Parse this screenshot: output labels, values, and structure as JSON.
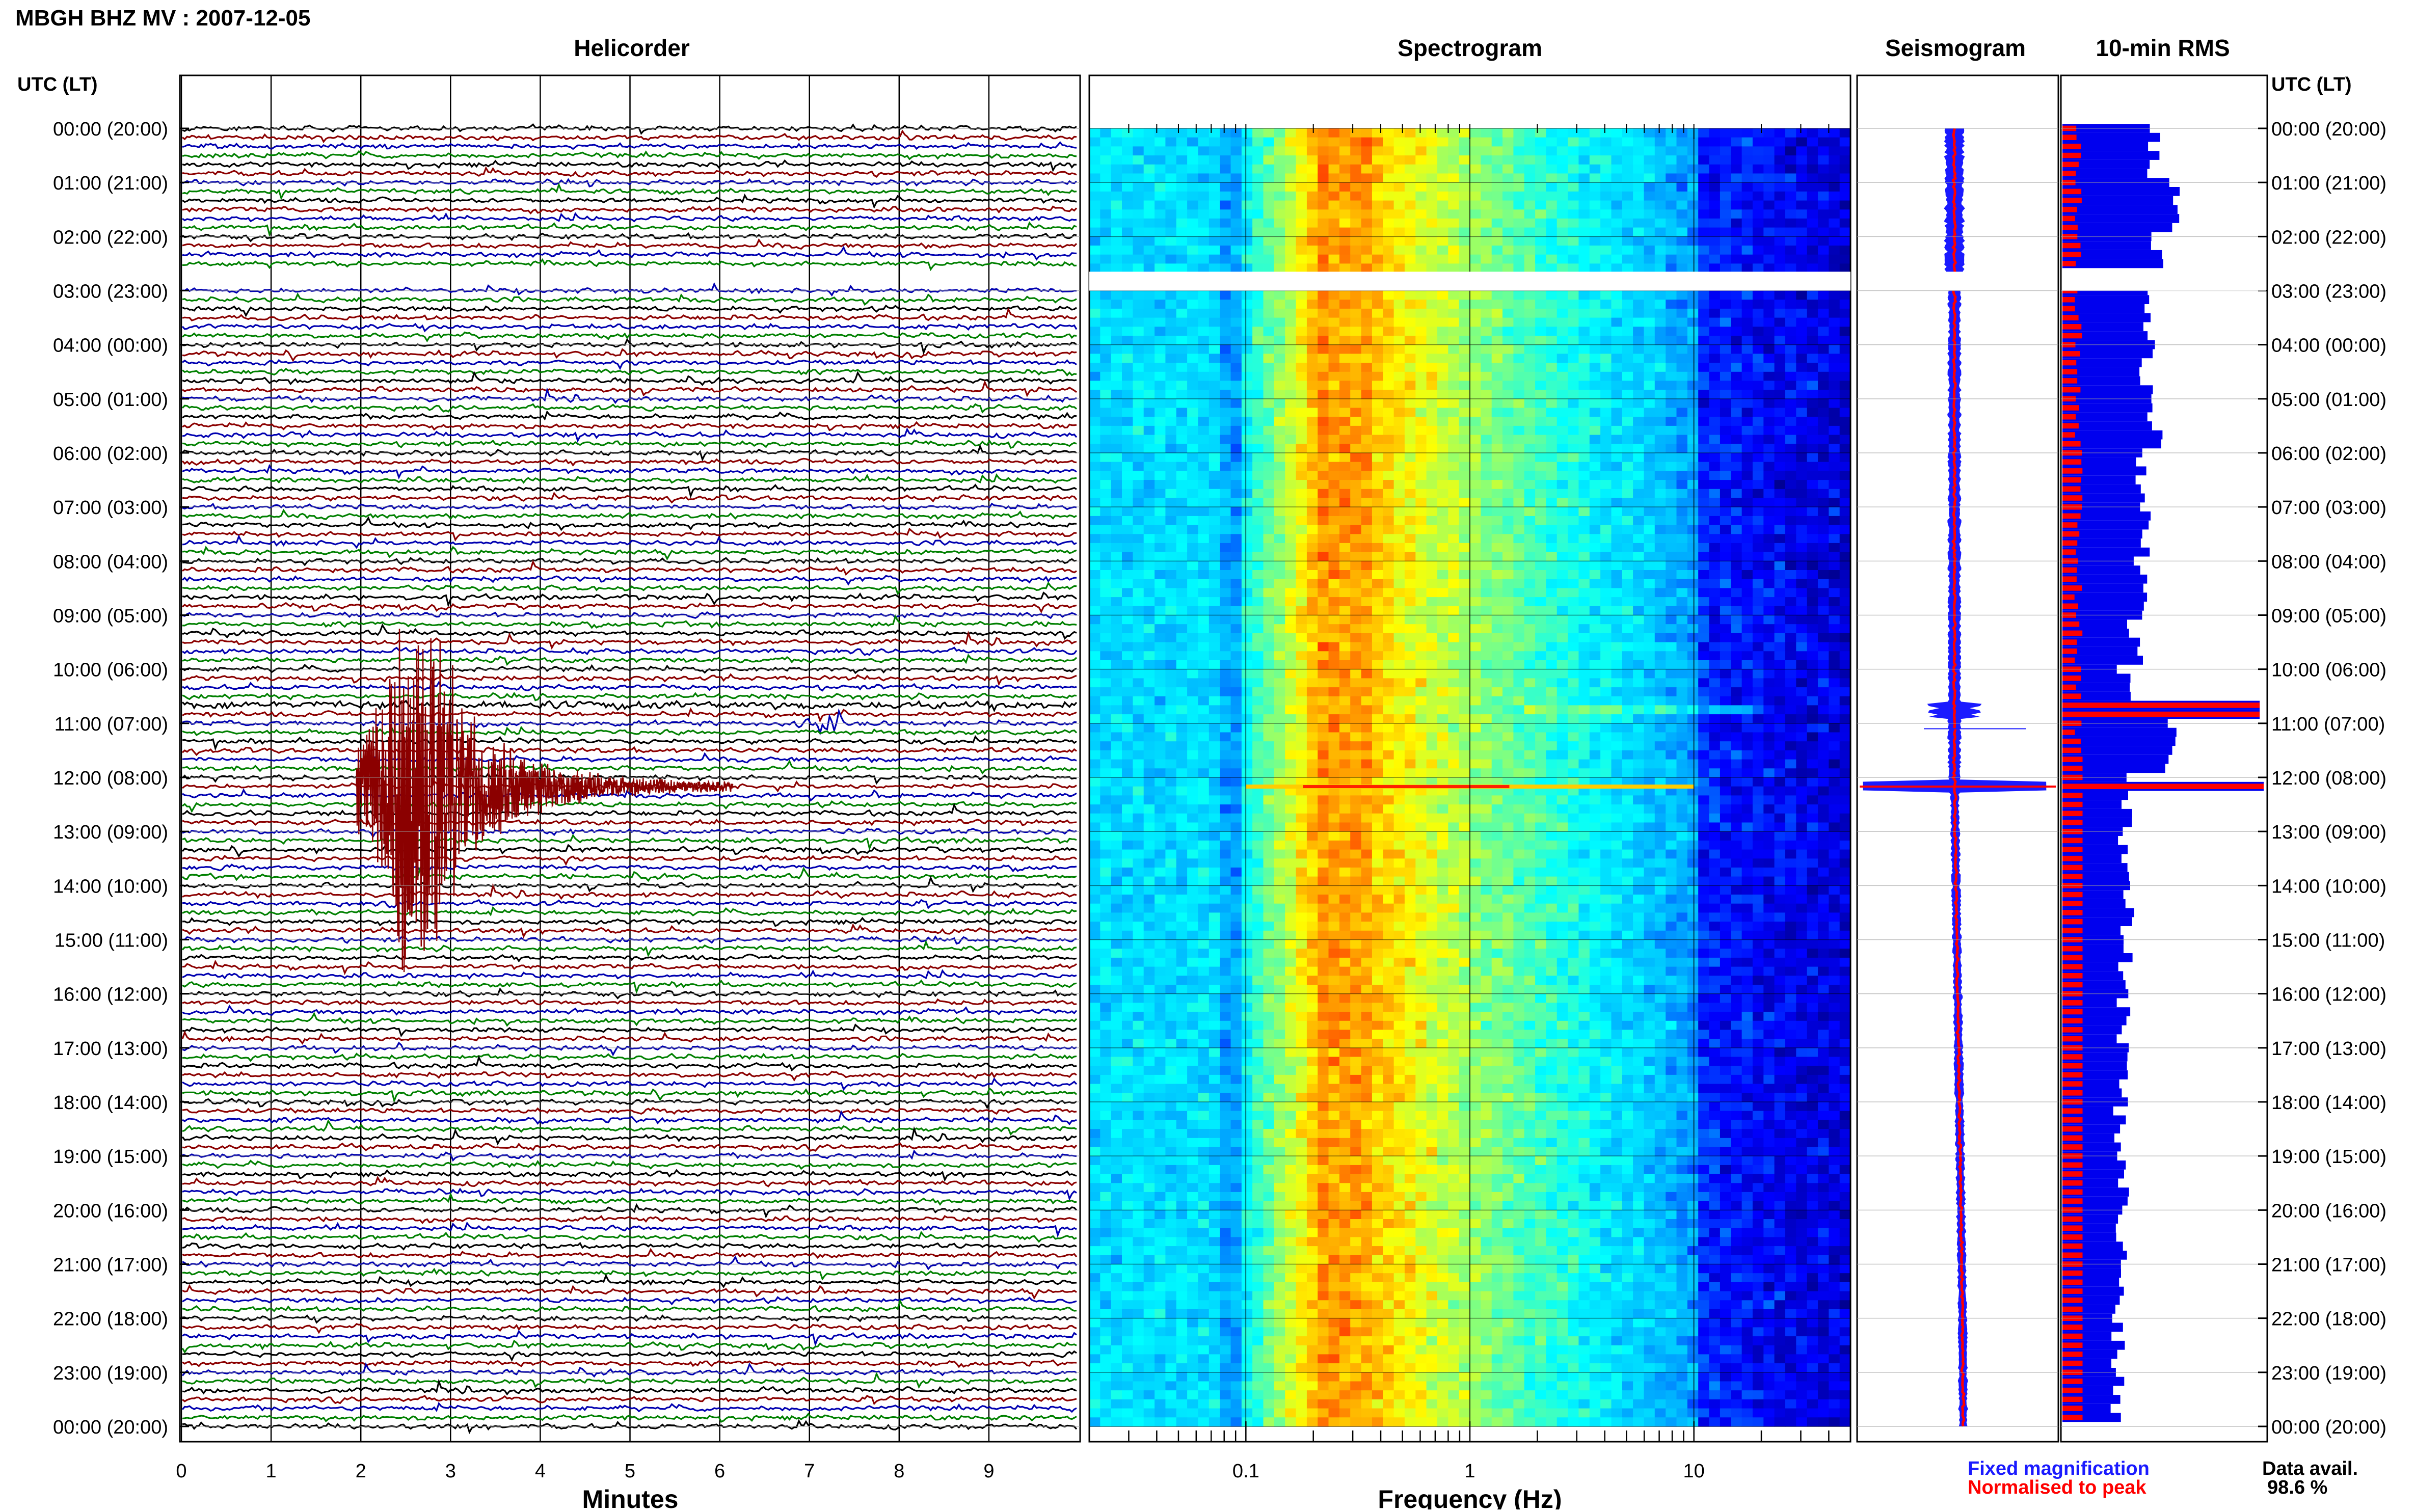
{
  "header": {
    "station_title": "MBGH BHZ MV : 2007-12-05"
  },
  "panels": {
    "helicorder_title": "Helicorder",
    "spectrogram_title": "Spectrogram",
    "seismogram_title": "Seismogram",
    "rms_title": "10-min RMS"
  },
  "time_axis": {
    "header_label": "UTC (LT)",
    "labels": [
      "00:00 (20:00)",
      "01:00 (21:00)",
      "02:00 (22:00)",
      "03:00 (23:00)",
      "04:00 (00:00)",
      "05:00 (01:00)",
      "06:00 (02:00)",
      "07:00 (03:00)",
      "08:00 (04:00)",
      "09:00 (05:00)",
      "10:00 (06:00)",
      "11:00 (07:00)",
      "12:00 (08:00)",
      "13:00 (09:00)",
      "14:00 (10:00)",
      "15:00 (11:00)",
      "16:00 (12:00)",
      "17:00 (13:00)",
      "18:00 (14:00)",
      "19:00 (15:00)",
      "20:00 (16:00)",
      "21:00 (17:00)",
      "22:00 (18:00)",
      "23:00 (19:00)",
      "00:00 (20:00)"
    ]
  },
  "bottom": {
    "minutes_label": "Minutes",
    "frequency_label": "Frequency (Hz)",
    "legend_fixed": "Fixed magnification",
    "legend_normalised": "Normalised to peak",
    "data_avail_label": "Data avail.",
    "data_avail_value": "98.6 %"
  },
  "colors": {
    "trace_palette": [
      "#000000",
      "#8b0000",
      "#0000b0",
      "#008000"
    ],
    "legend_fixed": "#1a1aff",
    "legend_normalised": "#ff0000",
    "rms_fixed": "#0000ee",
    "rms_normalised": "#ff0000"
  },
  "chart_data": [
    {
      "type": "line",
      "name": "helicorder",
      "x_label": "Minutes",
      "x_ticks": [
        0,
        1,
        2,
        3,
        4,
        5,
        6,
        7,
        8,
        9
      ],
      "xlim": [
        0,
        10
      ],
      "hours_span": 24,
      "traces_per_hour": 6,
      "data_gap_hours": [
        2.65,
        3.0
      ],
      "events": [
        {
          "start_hour": 10.6,
          "end_hour": 10.7,
          "description": "high noise band"
        },
        {
          "start_hour": 11.0,
          "minute": 7.1,
          "description": "small event"
        },
        {
          "start_hour": 12.17,
          "minute": 1.95,
          "description": "large earthquake"
        }
      ]
    },
    {
      "type": "heatmap",
      "name": "spectrogram",
      "x_label": "Frequency (Hz)",
      "x_scale": "log",
      "xlim": [
        0.02,
        50
      ],
      "x_ticks": [
        0.1,
        1,
        10
      ],
      "x_tick_labels": [
        "0.1",
        "1",
        "10"
      ],
      "colormap": [
        "#00007f",
        "#0000ff",
        "#00a0ff",
        "#00ffff",
        "#80ff80",
        "#ffff00",
        "#ff8000",
        "#ff0000"
      ],
      "data_gap_hours": [
        2.65,
        3.0
      ]
    },
    {
      "type": "line",
      "name": "seismogram",
      "series": [
        {
          "name": "Fixed magnification",
          "color": "#1a1aff"
        },
        {
          "name": "Normalised to peak",
          "color": "#ff0000"
        }
      ],
      "data_gap_hours": [
        2.65,
        3.0
      ]
    },
    {
      "type": "bar",
      "name": "10-min RMS",
      "orientation": "horizontal",
      "bins_per_hour": 6,
      "hours_span": 24,
      "series": [
        {
          "name": "Fixed magnification",
          "color": "#0000ee"
        },
        {
          "name": "Normalised to peak",
          "color": "#ff0000"
        }
      ],
      "hourly_level": [
        0.45,
        0.55,
        0.48,
        0.4,
        0.42,
        0.46,
        0.38,
        0.4,
        0.39,
        0.36,
        0.3,
        0.55,
        0.33,
        0.3,
        0.32,
        0.31,
        0.3,
        0.3,
        0.29,
        0.3,
        0.29,
        0.29,
        0.27,
        0.27
      ],
      "peaks": [
        {
          "hour": 10.75,
          "level": 0.98
        },
        {
          "hour": 12.17,
          "level": 1.0
        }
      ],
      "data_gap_hours": [
        2.65,
        3.0
      ]
    }
  ]
}
